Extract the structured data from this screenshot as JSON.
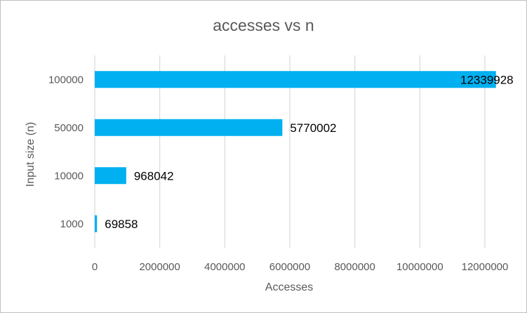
{
  "chart_data": {
    "type": "bar",
    "orientation": "horizontal",
    "title": "accesses vs n",
    "xlabel": "Accesses",
    "ylabel": "Input size (n)",
    "categories": [
      "1000",
      "10000",
      "50000",
      "100000"
    ],
    "values": [
      69858,
      968042,
      5770002,
      12339928
    ],
    "data_labels": [
      "69858",
      "968042",
      "5770002",
      "12339928"
    ],
    "xlim": [
      0,
      12000000
    ],
    "x_ticks": [
      0,
      2000000,
      4000000,
      6000000,
      8000000,
      10000000,
      12000000
    ],
    "x_tick_labels": [
      "0",
      "2000000",
      "4000000",
      "6000000",
      "8000000",
      "10000000",
      "12000000"
    ],
    "grid": true,
    "legend": "none",
    "colors": {
      "bar": "#00b0f0",
      "gridline": "#d9d9d9",
      "text": "#595959",
      "data_label": "#000000"
    }
  }
}
